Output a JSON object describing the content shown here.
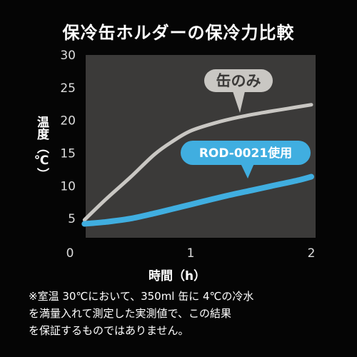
{
  "title": "保冷缶ホルダーの保冷力比較",
  "colors": {
    "background": "#050505",
    "plot_background": "#3b3a39",
    "series_can_only": "#c9c7c3",
    "series_rod": "#40aee0",
    "text": "#ffffff"
  },
  "chart_data": {
    "type": "line",
    "title": "保冷缶ホルダーの保冷力比較",
    "xlabel": "時間（h）",
    "ylabel_main": "温度",
    "ylabel_unit": "（℃）",
    "xlim": [
      0,
      2
    ],
    "ylim": [
      0,
      30
    ],
    "x_ticks": [
      0,
      1,
      2
    ],
    "y_ticks": [
      5,
      10,
      15,
      20,
      25,
      30
    ],
    "grid": false,
    "legend": "inline-callouts",
    "series": [
      {
        "name": "缶のみ",
        "color": "#c9c7c3",
        "points": [
          [
            0.12,
            4.8
          ],
          [
            0.3,
            8
          ],
          [
            0.5,
            11.3
          ],
          [
            0.7,
            14.8
          ],
          [
            0.85,
            16.8
          ],
          [
            1.0,
            18.4
          ],
          [
            1.2,
            19.6
          ],
          [
            1.4,
            20.5
          ],
          [
            1.6,
            21.2
          ],
          [
            1.8,
            21.8
          ],
          [
            2.0,
            22.4
          ]
        ]
      },
      {
        "name": "ROD-0021使用",
        "color": "#40aee0",
        "points": [
          [
            0.12,
            4.2
          ],
          [
            0.3,
            4.5
          ],
          [
            0.5,
            5.0
          ],
          [
            0.7,
            5.8
          ],
          [
            0.9,
            6.7
          ],
          [
            1.1,
            7.6
          ],
          [
            1.3,
            8.5
          ],
          [
            1.5,
            9.3
          ],
          [
            1.7,
            10.1
          ],
          [
            1.9,
            10.9
          ],
          [
            2.0,
            11.4
          ]
        ]
      }
    ]
  },
  "footnote_lines": [
    "※室温 30℃において、350ml 缶に 4℃の冷水",
    "を満量入れて測定した実測値で、この結果",
    "を保証するものではありません。"
  ]
}
